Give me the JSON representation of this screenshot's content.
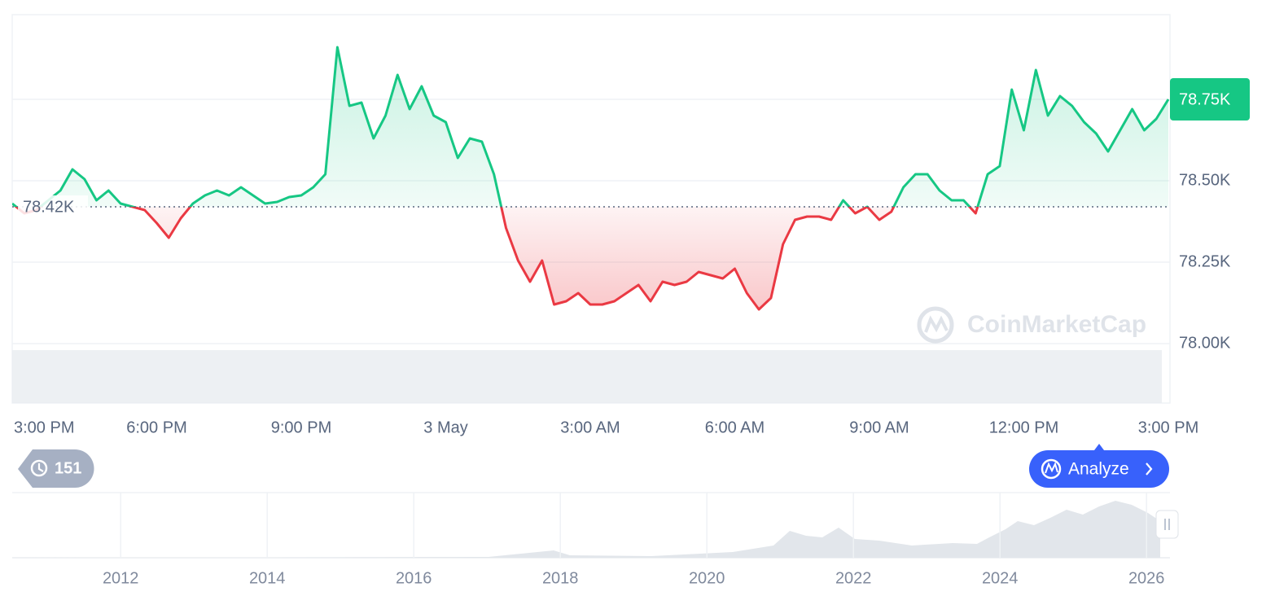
{
  "chart_data": {
    "type": "line",
    "x": [
      0,
      1,
      2,
      3,
      4,
      5,
      6,
      7,
      8,
      9,
      10,
      11,
      12,
      13,
      14,
      15,
      16,
      17,
      18,
      19,
      20,
      21,
      22,
      23,
      24,
      25,
      26,
      27,
      28,
      29,
      30,
      31,
      32,
      33,
      34,
      35,
      36,
      37,
      38,
      39,
      40,
      41,
      42,
      43,
      44,
      45,
      46,
      47,
      48,
      49,
      50,
      51,
      52,
      53,
      54,
      55,
      56,
      57,
      58,
      59,
      60,
      61,
      62,
      63,
      64,
      65,
      66,
      67,
      68,
      69,
      70,
      71,
      72,
      73,
      74,
      75,
      76,
      77,
      78,
      79,
      80,
      81,
      82,
      83,
      84,
      85,
      86,
      87,
      88,
      89,
      90,
      91,
      92,
      93,
      94,
      95,
      96
    ],
    "series": [
      {
        "name": "Price",
        "values": [
          78.43,
          78.4,
          78.41,
          78.44,
          78.47,
          78.535,
          78.505,
          78.44,
          78.47,
          78.43,
          78.42,
          78.41,
          78.37,
          78.325,
          78.385,
          78.43,
          78.455,
          78.47,
          78.455,
          78.48,
          78.455,
          78.43,
          78.435,
          78.45,
          78.455,
          78.48,
          78.52,
          78.91,
          78.73,
          78.74,
          78.63,
          78.7,
          78.825,
          78.72,
          78.79,
          78.7,
          78.68,
          78.57,
          78.63,
          78.62,
          78.52,
          78.355,
          78.255,
          78.19,
          78.255,
          78.12,
          78.13,
          78.155,
          78.12,
          78.12,
          78.13,
          78.155,
          78.18,
          78.13,
          78.19,
          78.18,
          78.19,
          78.22,
          78.21,
          78.2,
          78.23,
          78.155,
          78.105,
          78.14,
          78.305,
          78.38,
          78.39,
          78.39,
          78.38,
          78.44,
          78.4,
          78.42,
          78.38,
          78.405,
          78.48,
          78.52,
          78.52,
          78.47,
          78.44,
          78.44,
          78.4,
          78.52,
          78.545,
          78.78,
          78.655,
          78.84,
          78.7,
          78.76,
          78.73,
          78.68,
          78.645,
          78.59,
          78.655,
          78.72,
          78.655,
          78.69,
          78.75
        ]
      }
    ],
    "up_color": "#16c784",
    "down_color": "#ea3943",
    "xlim": [
      0,
      96
    ],
    "xticks": [
      {
        "value": 0,
        "label": "3:00 PM"
      },
      {
        "value": 12,
        "label": "6:00 PM"
      },
      {
        "value": 24,
        "label": "9:00 PM"
      },
      {
        "value": 36,
        "label": "3 May"
      },
      {
        "value": 48,
        "label": "3:00 AM"
      },
      {
        "value": 60,
        "label": "6:00 AM"
      },
      {
        "value": 72,
        "label": "9:00 AM"
      },
      {
        "value": 84,
        "label": "12:00 PM"
      },
      {
        "value": 96,
        "label": "3:00 PM"
      }
    ],
    "ylim": [
      77.8175,
      79.01
    ],
    "yticks": [
      {
        "value": 78,
        "label": "78.00K"
      },
      {
        "value": 78.25,
        "label": "78.25K"
      },
      {
        "value": 78.5,
        "label": "78.50K"
      },
      {
        "value": 78.75,
        "label": "78.75K"
      }
    ],
    "grid": true,
    "baseline": {
      "value": 78.42,
      "label": "78.42K"
    },
    "current": {
      "value": 78.75,
      "label": "78.75K"
    },
    "watermark": "CoinMarketCap"
  },
  "navigator": {
    "xlim": [
      2010.52,
      2026.32
    ],
    "xticks": [
      2012,
      2014,
      2016,
      2018,
      2020,
      2022,
      2024,
      2026
    ]
  },
  "ui": {
    "history_count": "151",
    "analyze": "Analyze"
  }
}
